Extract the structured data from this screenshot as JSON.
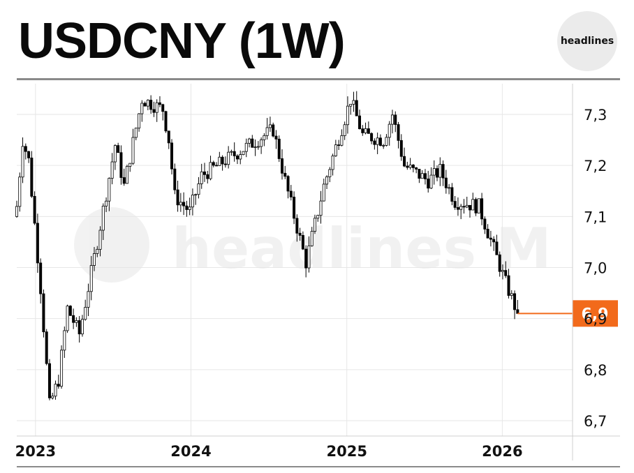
{
  "header": {
    "title": "USDCNY (1W)",
    "brand": "headlines"
  },
  "watermark": {
    "text": "headlines M"
  },
  "colors": {
    "up_candle": "#ffffff",
    "down_candle": "#000000",
    "last_price": "#f26a1b",
    "grid": "#e6e6e6",
    "rule": "#8a8a8a"
  },
  "chart_data": {
    "type": "candlestick",
    "title": "USDCNY (1W)",
    "interval": "1W",
    "xlabel": "",
    "ylabel": "",
    "y_ticks": [
      "7,3",
      "7,2",
      "7,1",
      "7,0",
      "6,9",
      "6,8",
      "6,7"
    ],
    "y_tick_values": [
      7.3,
      7.2,
      7.1,
      7.0,
      6.9,
      6.8,
      6.7
    ],
    "x_ticks": [
      "2023",
      "2024",
      "2025",
      "2026"
    ],
    "ylim": [
      6.68,
      7.35
    ],
    "grid": true,
    "last_price": 6.91,
    "last_price_label": "6,9",
    "anchors": [
      {
        "date": "2022-11-18",
        "close": 7.12
      },
      {
        "date": "2022-12-02",
        "close": 7.25
      },
      {
        "date": "2022-12-16",
        "close": 7.21
      },
      {
        "date": "2023-01-13",
        "close": 6.96
      },
      {
        "date": "2023-02-03",
        "close": 6.73
      },
      {
        "date": "2023-02-24",
        "close": 6.78
      },
      {
        "date": "2023-03-17",
        "close": 6.92
      },
      {
        "date": "2023-04-14",
        "close": 6.87
      },
      {
        "date": "2023-05-26",
        "close": 7.05
      },
      {
        "date": "2023-07-07",
        "close": 7.24
      },
      {
        "date": "2023-07-28",
        "close": 7.16
      },
      {
        "date": "2023-09-08",
        "close": 7.33
      },
      {
        "date": "2023-10-27",
        "close": 7.31
      },
      {
        "date": "2023-11-10",
        "close": 7.25
      },
      {
        "date": "2023-11-24",
        "close": 7.14
      },
      {
        "date": "2023-12-29",
        "close": 7.11
      },
      {
        "date": "2024-01-26",
        "close": 7.18
      },
      {
        "date": "2024-05-17",
        "close": 7.24
      },
      {
        "date": "2024-07-12",
        "close": 7.27
      },
      {
        "date": "2024-08-09",
        "close": 7.17
      },
      {
        "date": "2024-09-27",
        "close": 7.01
      },
      {
        "date": "2024-11-08",
        "close": 7.16
      },
      {
        "date": "2025-01-10",
        "close": 7.33
      },
      {
        "date": "2025-02-07",
        "close": 7.26
      },
      {
        "date": "2025-03-28",
        "close": 7.25
      },
      {
        "date": "2025-04-18",
        "close": 7.3
      },
      {
        "date": "2025-05-16",
        "close": 7.2
      },
      {
        "date": "2025-07-11",
        "close": 7.17
      },
      {
        "date": "2025-08-08",
        "close": 7.19
      },
      {
        "date": "2025-09-12",
        "close": 7.13
      },
      {
        "date": "2025-11-07",
        "close": 7.12
      },
      {
        "date": "2026-01-09",
        "close": 6.97
      },
      {
        "date": "2026-02-06",
        "close": 6.91
      }
    ]
  }
}
